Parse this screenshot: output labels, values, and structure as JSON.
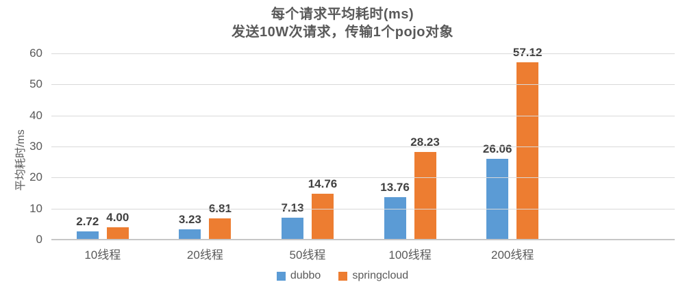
{
  "chart_data": {
    "type": "bar",
    "title": "每个请求平均耗时(ms)",
    "subtitle": "发送10W次请求，传输1个pojo对象",
    "categories": [
      "10线程",
      "20线程",
      "50线程",
      "100线程",
      "200线程"
    ],
    "series": [
      {
        "name": "dubbo",
        "color": "#5B9BD5",
        "values": [
          2.72,
          3.23,
          7.13,
          13.76,
          26.06
        ]
      },
      {
        "name": "springcloud",
        "color": "#ED7D31",
        "values": [
          4.0,
          6.81,
          14.76,
          28.23,
          57.12
        ]
      }
    ],
    "xlabel": "",
    "ylabel": "平均耗时/ms",
    "ylim": [
      0,
      60
    ],
    "yticks": [
      0,
      10,
      20,
      30,
      40,
      50,
      60
    ],
    "grid": true,
    "legend_position": "bottom",
    "value_label_decimals": 2
  },
  "colors": {
    "background": "#FFFFFF",
    "gridline": "#D9D9D9",
    "axis_line": "#C6C6C6",
    "title_text": "#595959",
    "tick_text": "#595959",
    "value_text": "#404040"
  }
}
